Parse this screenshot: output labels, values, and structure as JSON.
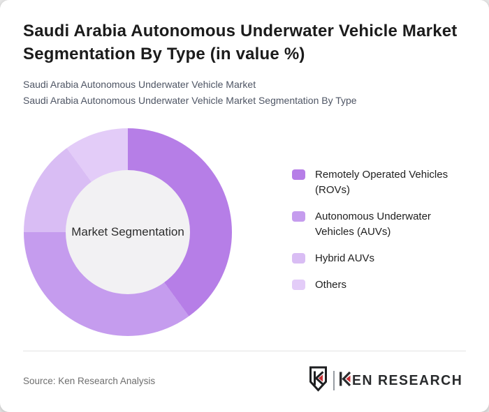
{
  "header": {
    "title": "Saudi Arabia Autonomous Underwater Vehicle Market Segmentation By Type (in value %)",
    "subtitle_line1": "Saudi Arabia Autonomous Underwater Vehicle Market",
    "subtitle_line2": "Saudi Arabia Autonomous Underwater Vehicle Market Segmentation By Type"
  },
  "chart_data": {
    "type": "pie",
    "subtype": "donut",
    "title": "Saudi Arabia Autonomous Underwater Vehicle Market Segmentation By Type (in value %)",
    "center_label": "Market Segmentation",
    "categories": [
      "Remotely Operated Vehicles (ROVs)",
      "Autonomous Underwater Vehicles (AUVs)",
      "Hybrid AUVs",
      "Others"
    ],
    "values": [
      40,
      35,
      15,
      10
    ],
    "unit": "% of market value",
    "colors": [
      "#b67ee7",
      "#c59cee",
      "#d9bdf4",
      "#e3ccf8"
    ],
    "hole_color": "#f2f1f3",
    "start_angle_deg": 0,
    "direction": "clockwise",
    "legend_position": "right",
    "data_labels": false
  },
  "footer": {
    "source": "Source: Ken Research Analysis",
    "logo": {
      "brand": "KEN RESEARCH",
      "accent_red": "#c62f35",
      "ink": "#222426"
    }
  }
}
